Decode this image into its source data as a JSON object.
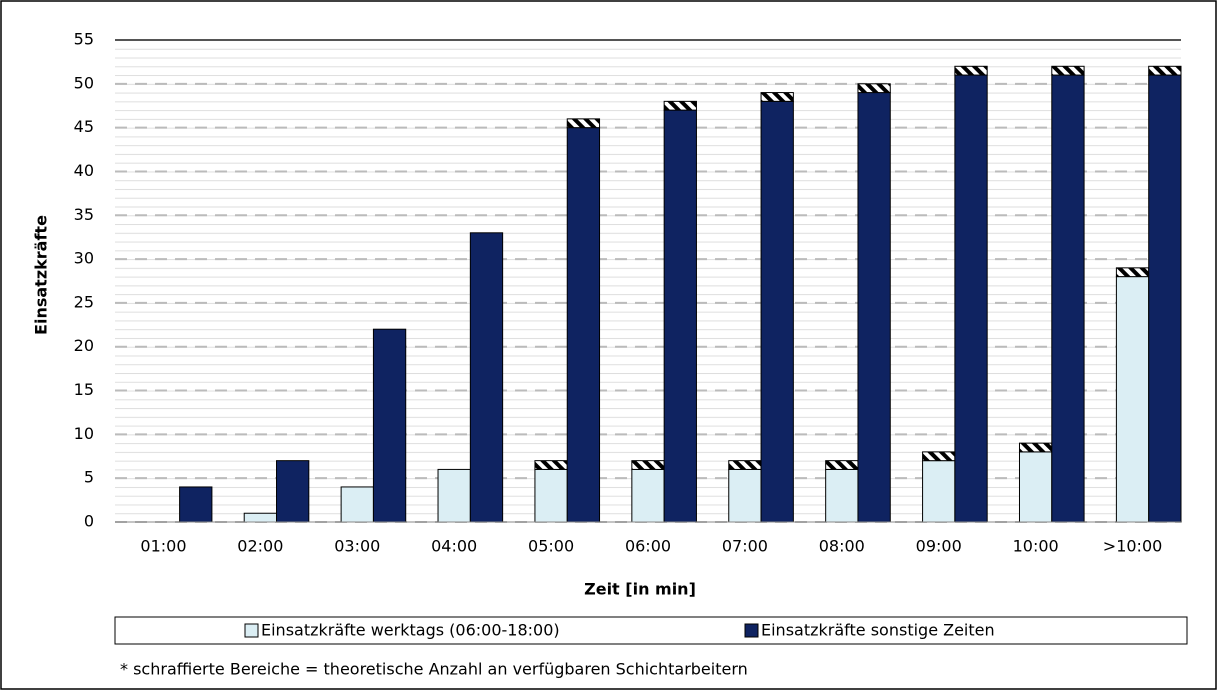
{
  "chart_data": {
    "type": "bar",
    "x_label": "Zeit [in min]",
    "y_label": "Einsatzkräfte",
    "categories": [
      "01:00",
      "02:00",
      "03:00",
      "04:00",
      "05:00",
      "06:00",
      "07:00",
      "08:00",
      "09:00",
      "10:00",
      ">10:00"
    ],
    "series": [
      {
        "name": "Einsatzkräfte werktags (06:00-18:00)",
        "color": "#dbeef4",
        "values": [
          0,
          1,
          4,
          6,
          6,
          6,
          6,
          6,
          7,
          8,
          28
        ],
        "hatched_values": [
          0,
          0,
          0,
          0,
          1,
          1,
          1,
          1,
          1,
          1,
          1
        ]
      },
      {
        "name": "Einsatzkräfte sonstige Zeiten",
        "color": "#0f2361",
        "values": [
          4,
          7,
          22,
          33,
          45,
          47,
          48,
          49,
          51,
          51,
          51
        ],
        "hatched_values": [
          0,
          0,
          0,
          0,
          1,
          1,
          1,
          1,
          1,
          1,
          1
        ]
      }
    ],
    "ylim": [
      0,
      55
    ],
    "yticks": [
      0,
      5,
      10,
      15,
      20,
      25,
      30,
      35,
      40,
      45,
      50,
      55
    ],
    "grid": true,
    "legend": "bottom",
    "footnote": "* schraffierte Bereiche = theoretische Anzahl an verfügbaren Schichtarbeitern"
  }
}
